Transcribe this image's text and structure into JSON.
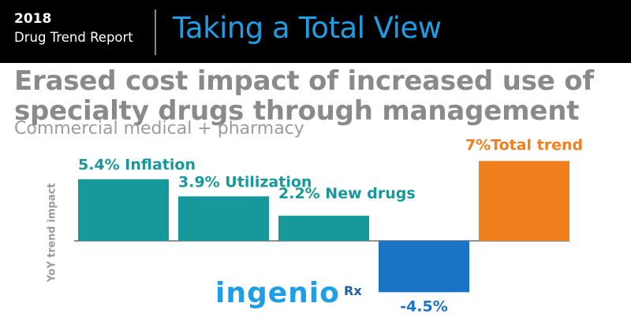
{
  "header": {
    "year": "2018",
    "report": "Drug Trend Report",
    "title": "Taking a Total View"
  },
  "headline": "Erased cost impact of increased use of specialty drugs through management",
  "subtitle": "Commercial medical + pharmacy",
  "logo": {
    "name": "ingenio",
    "suffix": "Rx"
  },
  "colors": {
    "teal": "#17989b",
    "blue": "#1a73c4",
    "orange": "#f0801e",
    "header_bg": "#000000",
    "title_blue": "#1e9ee6"
  },
  "chart_data": {
    "type": "bar",
    "ylabel": "YoY trend impact",
    "categories": [
      "Inflation",
      "Utilization",
      "New drugs",
      "",
      "Total trend"
    ],
    "values": [
      5.4,
      3.9,
      2.2,
      -4.5,
      7
    ],
    "labels": [
      "5.4% Inflation",
      "3.9% Utilization",
      "2.2% New drugs",
      "-4.5%",
      "7%Total trend"
    ],
    "colors": [
      "#17989b",
      "#17989b",
      "#17989b",
      "#1a73c4",
      "#f0801e"
    ],
    "ylim": [
      -6,
      8
    ],
    "grid": false,
    "legend": "none"
  }
}
